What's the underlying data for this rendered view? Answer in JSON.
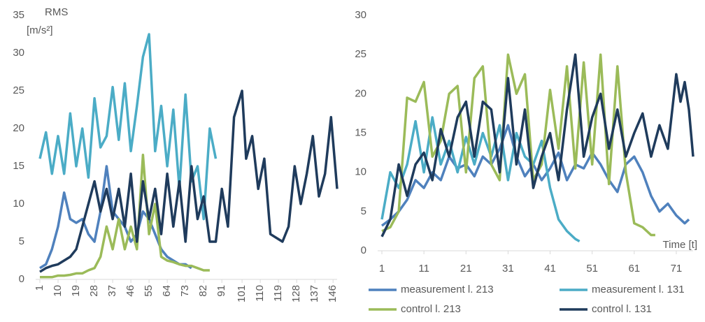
{
  "chart_data": [
    {
      "type": "line",
      "ylabel_lines": [
        "RMS",
        "[m/s²]"
      ],
      "xlim": [
        1,
        148
      ],
      "xticks": [
        1,
        10,
        19,
        28,
        37,
        46,
        55,
        64,
        73,
        82,
        91,
        101,
        110,
        119,
        128,
        137,
        146
      ],
      "x_tick_rotation": -90,
      "ylim": [
        0,
        35
      ],
      "yticks": [
        0,
        5,
        10,
        15,
        20,
        25,
        30,
        35
      ],
      "grid": false,
      "series": [
        {
          "color": "#4bacc6",
          "x": [
            1,
            4,
            7,
            10,
            13,
            16,
            19,
            22,
            25,
            28,
            31,
            34,
            37,
            40,
            43,
            46,
            49,
            52,
            55,
            58,
            61,
            64,
            67,
            70,
            73,
            76,
            79,
            82,
            85,
            88
          ],
          "values": [
            16,
            19.5,
            14,
            19,
            14,
            22,
            15,
            20,
            13.5,
            24,
            17.5,
            19,
            25.5,
            18.5,
            26,
            17,
            23,
            29.5,
            32.5,
            17,
            23,
            15,
            22.5,
            12,
            24.5,
            13,
            15,
            8,
            20,
            16
          ]
        },
        {
          "color": "#4f81bd",
          "x": [
            1,
            4,
            7,
            10,
            13,
            16,
            19,
            22,
            25,
            28,
            31,
            34,
            37,
            40,
            43,
            46,
            49,
            52,
            55,
            58,
            61,
            64,
            67,
            70,
            73,
            76
          ],
          "values": [
            1.5,
            2,
            4,
            7,
            11.5,
            8,
            7.5,
            8,
            6,
            5,
            9,
            15,
            9,
            8,
            7,
            5,
            6,
            9,
            8,
            6,
            4,
            3,
            2.5,
            2,
            2,
            1.5
          ]
        },
        {
          "color": "#9bbb59",
          "x": [
            1,
            4,
            7,
            10,
            13,
            16,
            19,
            22,
            25,
            28,
            31,
            34,
            37,
            40,
            43,
            46,
            49,
            52,
            55,
            58,
            61,
            64,
            67,
            70,
            73,
            76,
            79,
            82,
            85
          ],
          "values": [
            0.3,
            0.3,
            0.3,
            0.5,
            0.5,
            0.6,
            0.8,
            0.8,
            1.2,
            1.5,
            3,
            7,
            4,
            8,
            4,
            7,
            4,
            16.5,
            6,
            10,
            3,
            2.5,
            2.3,
            2,
            1.8,
            1.8,
            1.5,
            1.2,
            1.2
          ]
        },
        {
          "color": "#1f3b5c",
          "x": [
            1,
            4,
            7,
            10,
            13,
            16,
            19,
            22,
            25,
            28,
            31,
            34,
            37,
            40,
            43,
            46,
            49,
            52,
            55,
            58,
            61,
            64,
            67,
            70,
            73,
            76,
            79,
            82,
            85,
            88,
            91,
            94,
            97,
            101,
            103,
            106,
            109,
            112,
            115,
            118,
            121,
            124,
            127,
            130,
            133,
            136,
            139,
            142,
            145,
            148
          ],
          "values": [
            1,
            1.5,
            1.8,
            2,
            2.5,
            3,
            4,
            7,
            10,
            13,
            9,
            12,
            8,
            12,
            7,
            14,
            5,
            13,
            8,
            12,
            6,
            14,
            7,
            13,
            5,
            15,
            8,
            11,
            5,
            5,
            12,
            7,
            21.5,
            25,
            16,
            19,
            12,
            16,
            6,
            5.5,
            5,
            7,
            15,
            10,
            14,
            19,
            11,
            14,
            21.5,
            12
          ]
        }
      ]
    },
    {
      "type": "line",
      "xlabel": "Time [t]",
      "xlim": [
        1,
        75
      ],
      "xticks": [
        1,
        11,
        21,
        31,
        41,
        51,
        61,
        71
      ],
      "ylim": [
        0,
        30
      ],
      "yticks": [
        0,
        5,
        10,
        15,
        20,
        25,
        30
      ],
      "grid": false,
      "legend": "bottom",
      "series": [
        {
          "name": "measurement l. 213",
          "color": "#4f81bd",
          "x": [
            1,
            3,
            5,
            7,
            9,
            11,
            13,
            15,
            17,
            19,
            21,
            23,
            25,
            27,
            29,
            31,
            33,
            35,
            37,
            39,
            41,
            43,
            45,
            47,
            49,
            51,
            53,
            55,
            57,
            59,
            61,
            63,
            65,
            67,
            69,
            71,
            73,
            74
          ],
          "values": [
            3.2,
            4,
            5,
            6.5,
            9,
            8,
            10,
            9,
            12,
            10.5,
            11,
            9.5,
            12,
            11,
            13,
            16,
            12,
            9.5,
            11,
            9,
            10.5,
            12.5,
            9,
            11,
            10.5,
            12.5,
            11,
            9,
            7.5,
            11,
            12,
            10,
            7,
            5,
            6,
            4.5,
            3.5,
            4
          ]
        },
        {
          "name": "measurement l. 131",
          "color": "#4bacc6",
          "x": [
            1,
            3,
            5,
            7,
            9,
            11,
            13,
            15,
            17,
            19,
            21,
            23,
            25,
            27,
            29,
            31,
            33,
            35,
            37,
            39,
            41,
            43,
            45,
            47,
            48
          ],
          "values": [
            4,
            10,
            8,
            11,
            16.5,
            10,
            17,
            11,
            14,
            10,
            14.5,
            11,
            15,
            12,
            16,
            9,
            15,
            12,
            11,
            14,
            8,
            4,
            2.5,
            1.5,
            1.2
          ]
        },
        {
          "name": "control l. 213",
          "color": "#9bbb59",
          "x": [
            1,
            3,
            5,
            7,
            9,
            11,
            13,
            15,
            17,
            19,
            21,
            23,
            25,
            27,
            29,
            31,
            33,
            35,
            37,
            39,
            41,
            43,
            45,
            47,
            49,
            51,
            53,
            55,
            57,
            59,
            61,
            63,
            65,
            66
          ],
          "values": [
            2.5,
            3,
            5,
            19.5,
            19,
            21.5,
            12,
            14,
            20,
            21,
            10,
            22,
            23.5,
            11,
            9,
            25,
            20,
            22.5,
            9,
            11,
            20.5,
            13,
            23.5,
            10.5,
            24,
            11,
            25,
            8.5,
            23.5,
            10,
            3.5,
            3,
            2,
            2
          ]
        },
        {
          "name": "control l. 131",
          "color": "#1f3b5c",
          "x": [
            1,
            3,
            5,
            7,
            9,
            11,
            13,
            15,
            17,
            19,
            21,
            23,
            25,
            27,
            29,
            31,
            33,
            35,
            37,
            39,
            41,
            43,
            45,
            47,
            49,
            51,
            53,
            55,
            57,
            59,
            61,
            63,
            65,
            67,
            69,
            71,
            72,
            73,
            74,
            75
          ],
          "values": [
            1.8,
            4,
            11,
            7,
            11,
            12.5,
            9,
            15.5,
            12,
            17,
            19,
            12,
            19,
            18,
            10,
            22,
            11,
            18,
            8,
            12,
            15,
            9,
            18,
            25,
            12,
            17,
            20,
            13,
            18,
            12,
            15,
            17.5,
            12,
            16,
            13,
            22.5,
            19,
            21.5,
            18,
            12
          ]
        }
      ]
    }
  ]
}
